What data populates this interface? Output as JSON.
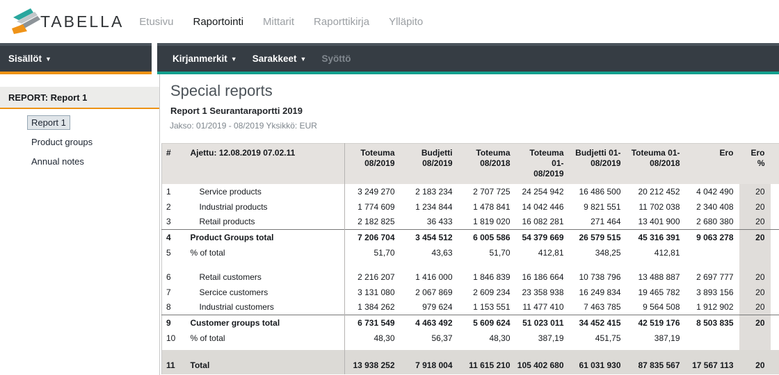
{
  "brand": {
    "name": "TABELLA"
  },
  "colors": {
    "accent_orange": "#ed9214",
    "accent_teal": "#13a08e",
    "toolbar_dark": "#363d44",
    "header_gray": "#e5e2df",
    "band_gray": "#dcdad6"
  },
  "top_nav": {
    "items": [
      {
        "label": "Etusivu",
        "active": false
      },
      {
        "label": "Raportointi",
        "active": true
      },
      {
        "label": "Mittarit",
        "active": false
      },
      {
        "label": "Raporttikirja",
        "active": false
      },
      {
        "label": "Ylläpito",
        "active": false
      }
    ]
  },
  "sidebar": {
    "panel_title": "Sisällöt",
    "report_header": "REPORT: Report 1",
    "links": [
      {
        "label": "Report 1",
        "selected": true
      },
      {
        "label": "Product groups",
        "selected": false
      },
      {
        "label": "Annual notes",
        "selected": false
      }
    ]
  },
  "toolbar": {
    "items": [
      {
        "label": "Kirjanmerkit",
        "dropdown": true,
        "enabled": true
      },
      {
        "label": "Sarakkeet",
        "dropdown": true,
        "enabled": true
      },
      {
        "label": "Syöttö",
        "dropdown": false,
        "enabled": false
      }
    ]
  },
  "report": {
    "title": "Special reports",
    "subtitle": "Report 1 Seurantaraportti 2019",
    "period": "Jakso: 01/2019 - 08/2019 Yksikkö: EUR"
  },
  "table": {
    "hash_header": "#",
    "run_label": "Ajettu: 12.08.2019 07.02.11",
    "columns": [
      "Toteuma\n08/2019",
      "Budjetti\n08/2019",
      "Toteuma\n08/2018",
      "Toteuma 01-\n08/2019",
      "Budjetti 01-\n08/2019",
      "Toteuma 01-\n08/2018",
      "Ero",
      "Ero\n%"
    ],
    "rows": [
      {
        "type": "item",
        "num": "1",
        "label": "Service products",
        "indent": true,
        "values": [
          "3 249 270",
          "2 183 234",
          "2 707 725",
          "24 254 942",
          "16 486 500",
          "20 212 452",
          "4 042 490",
          "20"
        ]
      },
      {
        "type": "item",
        "num": "2",
        "label": "Industrial products",
        "indent": true,
        "values": [
          "1 774 609",
          "1 234 844",
          "1 478 841",
          "14 042 446",
          "9 821 551",
          "11 702 038",
          "2 340 408",
          "20"
        ]
      },
      {
        "type": "item",
        "num": "3",
        "label": "Retail products",
        "indent": true,
        "values": [
          "2 182 825",
          "36 433",
          "1 819 020",
          "16 082 281",
          "271 464",
          "13 401 900",
          "2 680 380",
          "20"
        ]
      },
      {
        "type": "total",
        "num": "4",
        "label": "Product Groups total",
        "indent": false,
        "values": [
          "7 206 704",
          "3 454 512",
          "6 005 586",
          "54 379 669",
          "26 579 515",
          "45 316 391",
          "9 063 278",
          "20"
        ]
      },
      {
        "type": "percent",
        "num": "5",
        "label": "% of total",
        "indent": false,
        "values": [
          "51,70",
          "43,63",
          "51,70",
          "412,81",
          "348,25",
          "412,81",
          "",
          ""
        ]
      },
      {
        "type": "gap"
      },
      {
        "type": "item",
        "num": "6",
        "label": "Retail customers",
        "indent": true,
        "values": [
          "2 216 207",
          "1 416 000",
          "1 846 839",
          "16 186 664",
          "10 738 796",
          "13 488 887",
          "2 697 777",
          "20"
        ]
      },
      {
        "type": "item",
        "num": "7",
        "label": "Sercice customers",
        "indent": true,
        "values": [
          "3 131 080",
          "2 067 869",
          "2 609 234",
          "23 358 938",
          "16 249 834",
          "19 465 782",
          "3 893 156",
          "20"
        ]
      },
      {
        "type": "item",
        "num": "8",
        "label": "Industrial customers",
        "indent": true,
        "values": [
          "1 384 262",
          "979 624",
          "1 153 551",
          "11 477 410",
          "7 463 785",
          "9 564 508",
          "1 912 902",
          "20"
        ]
      },
      {
        "type": "total",
        "num": "9",
        "label": "Customer groups total",
        "indent": false,
        "values": [
          "6 731 549",
          "4 463 492",
          "5 609 624",
          "51 023 011",
          "34 452 415",
          "42 519 176",
          "8 503 835",
          "20"
        ]
      },
      {
        "type": "percent",
        "num": "10",
        "label": "% of total",
        "indent": false,
        "values": [
          "48,30",
          "56,37",
          "48,30",
          "387,19",
          "451,75",
          "387,19",
          "",
          ""
        ]
      },
      {
        "type": "gap2"
      },
      {
        "type": "spacer"
      },
      {
        "type": "grand",
        "num": "11",
        "label": "Total",
        "indent": false,
        "values": [
          "13 938 252",
          "7 918 004",
          "11 615 210",
          "105 402 680",
          "61 031 930",
          "87 835 567",
          "17 567 113",
          "20"
        ]
      }
    ]
  }
}
